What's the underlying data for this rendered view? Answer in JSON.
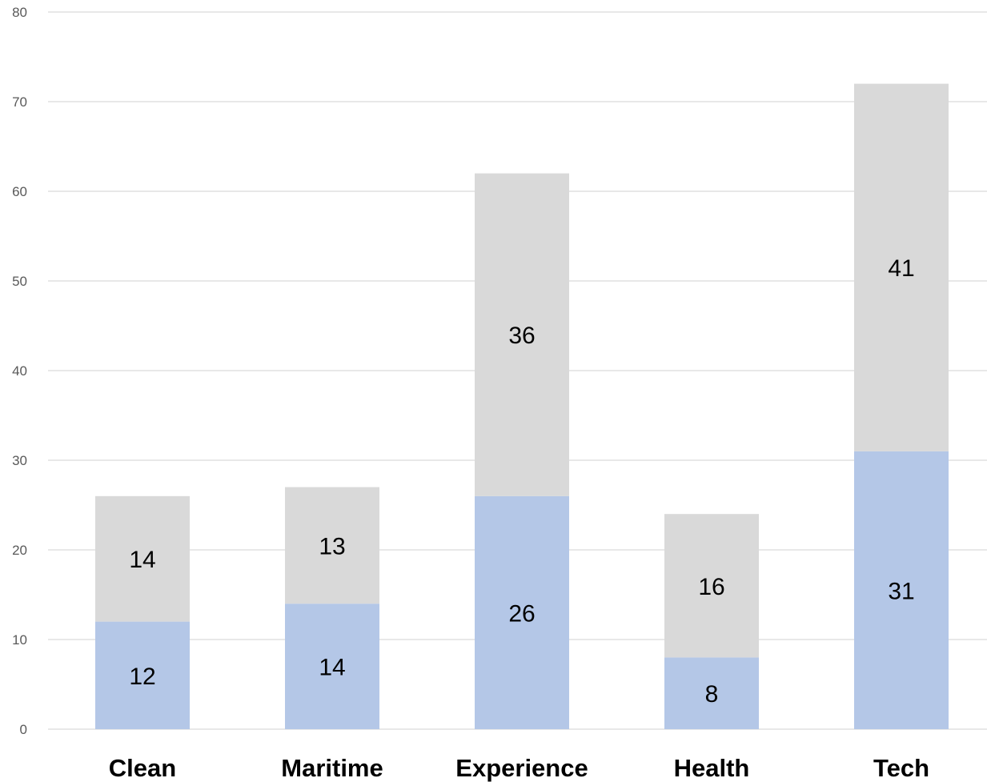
{
  "chart_data": {
    "type": "bar",
    "stacked": true,
    "categories": [
      "Clean",
      "Maritime",
      "Experience",
      "Health",
      "Tech"
    ],
    "series": [
      {
        "values": [
          12,
          14,
          26,
          8,
          31
        ],
        "color": "#b4c7e7"
      },
      {
        "values": [
          14,
          13,
          36,
          16,
          41
        ],
        "color": "#d9d9d9"
      }
    ],
    "ylim": [
      0,
      80
    ],
    "yticks": [
      "0",
      "10",
      "20",
      "30",
      "40",
      "50",
      "60",
      "70",
      "80"
    ],
    "grid": true,
    "legend": "none",
    "title": "",
    "xlabel": "",
    "ylabel": ""
  }
}
